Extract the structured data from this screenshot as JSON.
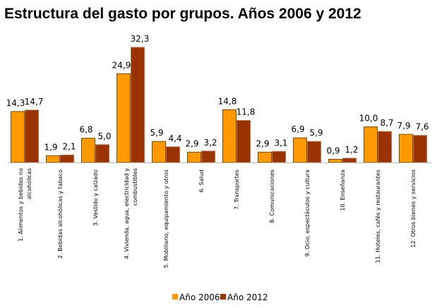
{
  "chart_data": {
    "type": "bar",
    "title": "Estructura del gasto por grupos. Años 2006 y 2012",
    "categories": [
      [
        "1. Alimentos y bebidas no",
        "alcohólicas"
      ],
      [
        "2. Bebidas alcohólicas y tabaco"
      ],
      [
        "3. Vestido y calzado"
      ],
      [
        "4. Vivienda, agua, electricidad y",
        "combustibles"
      ],
      [
        "5. Mobiliario, equipamiento y otros"
      ],
      [
        "6. Salud"
      ],
      [
        "7. Transportes"
      ],
      [
        "8. Comunicaciones"
      ],
      [
        "9. Ocio, espectáculos y cultura"
      ],
      [
        "10. Enseñanza"
      ],
      [
        "11. Hoteles, cafés y restaurantes"
      ],
      [
        "12. Otros bienes y servicios"
      ]
    ],
    "series": [
      {
        "name": "Año 2006",
        "color": "#FF9900",
        "values": [
          14.3,
          1.9,
          6.8,
          24.9,
          5.9,
          2.9,
          14.8,
          2.9,
          6.9,
          0.9,
          10.0,
          7.9
        ],
        "labels": [
          "14,3",
          "1,9",
          "6,8",
          "24,9",
          "5,9",
          "2,9",
          "14,8",
          "2,9",
          "6,9",
          "0,9",
          "10,0",
          "7,9"
        ]
      },
      {
        "name": "Año 2012",
        "color": "#993300",
        "values": [
          14.7,
          2.1,
          5.0,
          32.3,
          4.4,
          3.2,
          11.8,
          3.1,
          5.9,
          1.2,
          8.7,
          7.6
        ],
        "labels": [
          "14,7",
          "2,1",
          "5,0",
          "32,3",
          "4,4",
          "3,2",
          "11,8",
          "3,1",
          "5,9",
          "1,2",
          "8,7",
          "7,6"
        ]
      }
    ],
    "ylim": [
      0,
      32.3
    ],
    "grid": false,
    "legend": "bottom-center"
  }
}
